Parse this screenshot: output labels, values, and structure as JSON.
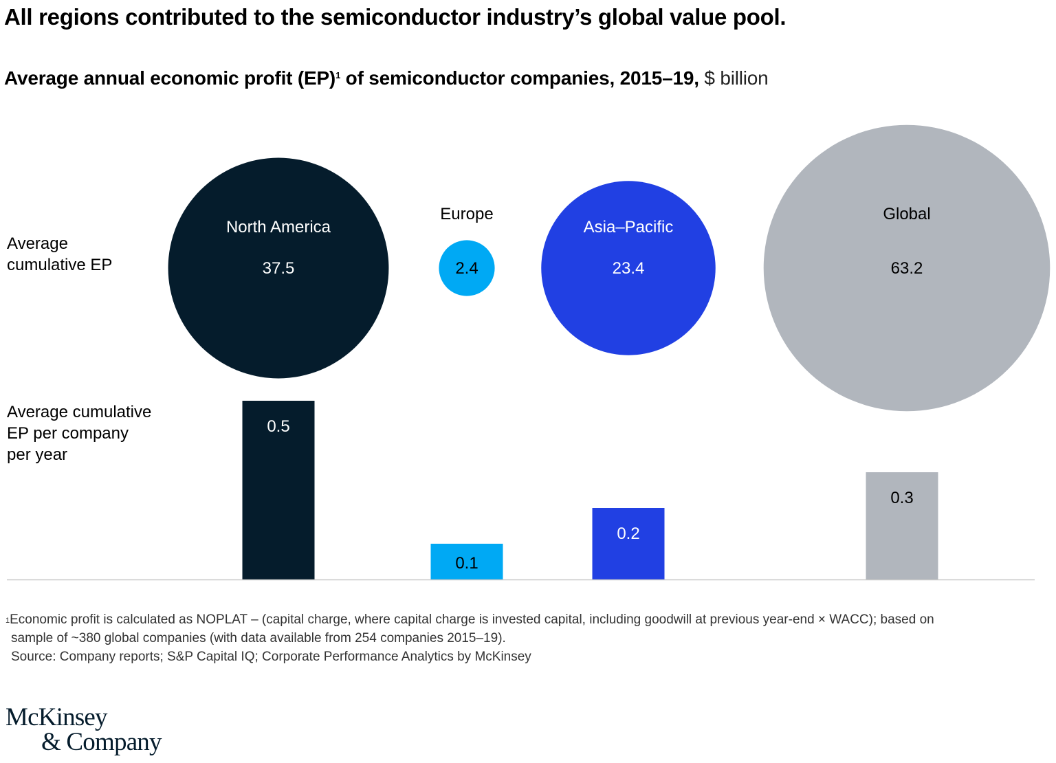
{
  "header": {
    "title": "All regions contributed to the semiconductor industry’s global value pool.",
    "subtitle_bold": "Average annual economic profit (EP)",
    "subtitle_sup": "1",
    "subtitle_bold2": " of semiconductor companies, 2015–19,",
    "subtitle_unit": " $ billion"
  },
  "chart_data": {
    "type": "bar",
    "title": "Average annual economic profit (EP) of semiconductor companies, 2015–19, $ billion",
    "categories": [
      "North America",
      "Europe",
      "Asia–Pacific",
      "Global"
    ],
    "series": [
      {
        "name": "Average cumulative EP",
        "mark": "bubble",
        "values": [
          37.5,
          2.4,
          23.4,
          63.2
        ],
        "labels": [
          "37.5",
          "2.4",
          "23.4",
          "63.2"
        ]
      },
      {
        "name": "Average cumulative EP per company per year",
        "mark": "bar",
        "values": [
          0.5,
          0.1,
          0.2,
          0.3
        ],
        "labels": [
          "0.5",
          "0.1",
          "0.2",
          "0.3"
        ]
      }
    ],
    "colors": [
      "#051c2c",
      "#00a9f4",
      "#2140e3",
      "#b1b6bd"
    ],
    "label_colors": [
      "#ffffff",
      "#000000",
      "#ffffff",
      "#000000"
    ],
    "bubble_label_outside": [
      false,
      true,
      false,
      false
    ],
    "row_labels": [
      "Average\ncumulative EP",
      "Average cumulative\nEP per company\nper year"
    ],
    "xlabel": "",
    "ylabel": "",
    "grid": false,
    "legend": "none"
  },
  "footnote": {
    "sup": "1",
    "line1": "Economic profit is calculated as NOPLAT – (capital charge, where capital charge is invested capital, including goodwill at previous year-end × WACC); based on",
    "line2": "sample of ~380 global companies (with data available from 254 companies 2015–19).",
    "source": "Source: Company reports; S&P Capital IQ; Corporate Performance Analytics by McKinsey"
  },
  "logo": {
    "line1": "McKinsey",
    "line2": "& Company"
  }
}
